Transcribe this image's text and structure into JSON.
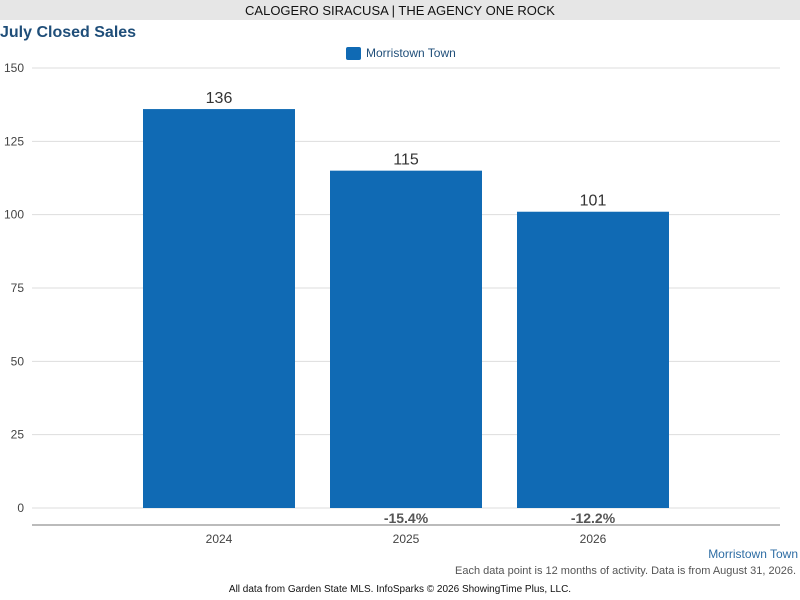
{
  "header": {
    "banner": "CALOGERO SIRACUSA | THE AGENCY ONE ROCK"
  },
  "legend": {
    "label": "Morristown Town",
    "color": "#106ab4"
  },
  "footer": {
    "region": "Morristown Town",
    "note": "Each data point is 12 months of activity. Data is from August 31, 2026.",
    "credit": "All data from Garden State MLS. InfoSparks © 2026 ShowingTime Plus, LLC."
  },
  "chart_data": {
    "type": "bar",
    "title": "July Closed Sales",
    "xlabel": "",
    "ylabel": "",
    "categories": [
      "2024",
      "2025",
      "2026"
    ],
    "series": [
      {
        "name": "Morristown Town",
        "values": [
          136,
          115,
          101
        ],
        "color": "#106ab4"
      }
    ],
    "value_labels": [
      "136",
      "115",
      "101"
    ],
    "change_labels": [
      "",
      "-15.4%",
      "-12.2%"
    ],
    "ylim": [
      0,
      150
    ],
    "yticks": [
      0,
      25,
      50,
      75,
      100,
      125,
      150
    ],
    "grid": true,
    "legend_position": "top-center"
  }
}
